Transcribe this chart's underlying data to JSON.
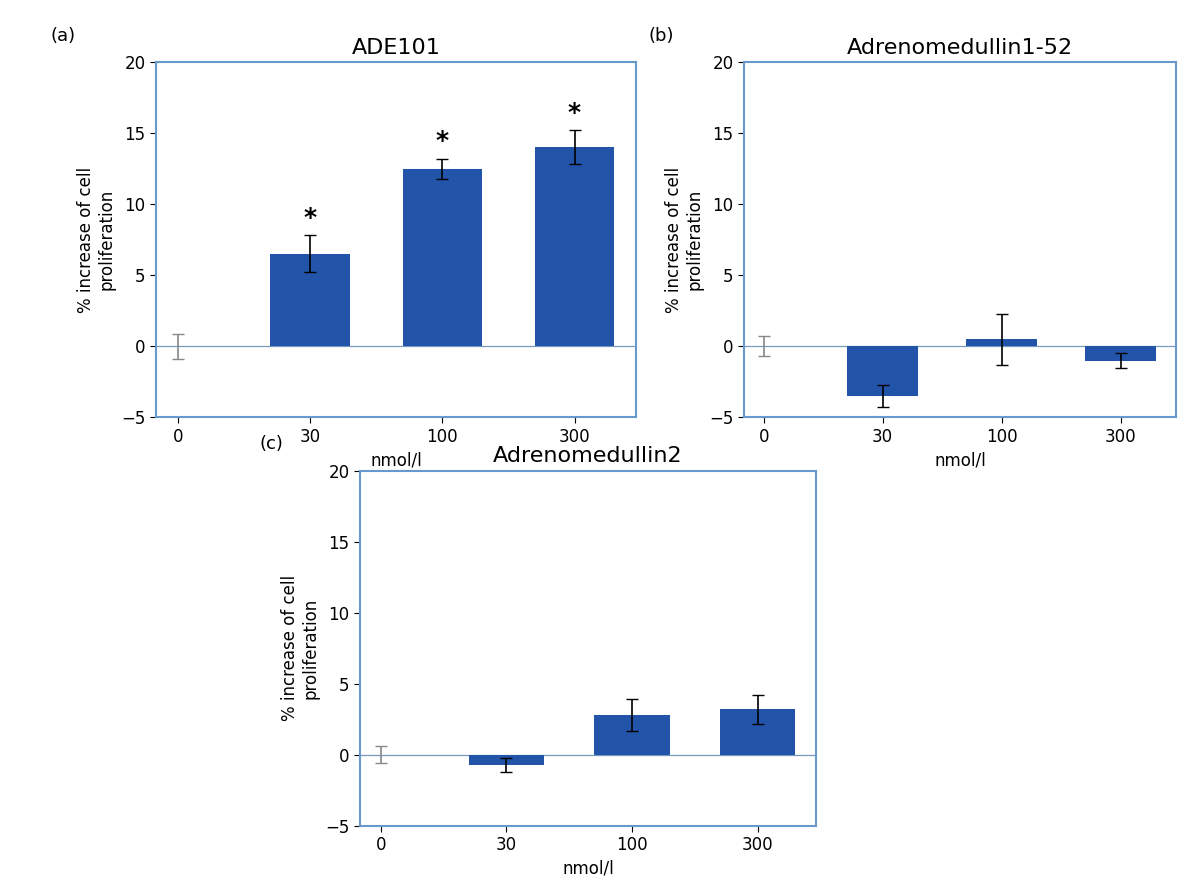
{
  "panels": [
    {
      "label": "(a)",
      "title": "ADE101",
      "categories": [
        "0",
        "30",
        "100",
        "300"
      ],
      "values": [
        0.0,
        6.5,
        12.5,
        14.0
      ],
      "errors": [
        0.9,
        1.3,
        0.7,
        1.2
      ],
      "zero_bar_color": "#bbbbbb",
      "bar_color": "#2255aa",
      "asterisks": [
        false,
        true,
        true,
        true
      ],
      "ylim": [
        -5,
        20
      ],
      "yticks": [
        -5,
        0,
        5,
        10,
        15,
        20
      ],
      "xlabel": "nmol/l",
      "ylabel": "% increase of cell\nproliferation"
    },
    {
      "label": "(b)",
      "title": "Adrenomedullin1-52",
      "categories": [
        "0",
        "30",
        "100",
        "300"
      ],
      "values": [
        0.0,
        -3.5,
        0.5,
        -1.0
      ],
      "errors": [
        0.7,
        0.8,
        1.8,
        0.5
      ],
      "zero_bar_color": "#bbbbbb",
      "bar_color": "#2255aa",
      "asterisks": [
        false,
        false,
        false,
        false
      ],
      "ylim": [
        -5,
        20
      ],
      "yticks": [
        -5,
        0,
        5,
        10,
        15,
        20
      ],
      "xlabel": "nmol/l",
      "ylabel": "% increase of cell\nproliferation"
    },
    {
      "label": "(c)",
      "title": "Adrenomedullin2",
      "categories": [
        "0",
        "30",
        "100",
        "300"
      ],
      "values": [
        0.0,
        -0.7,
        2.8,
        3.2
      ],
      "errors": [
        0.6,
        0.5,
        1.1,
        1.0
      ],
      "zero_bar_color": "#bbbbbb",
      "bar_color": "#2255aa",
      "asterisks": [
        false,
        false,
        false,
        false
      ],
      "ylim": [
        -5,
        20
      ],
      "yticks": [
        -5,
        0,
        5,
        10,
        15,
        20
      ],
      "xlabel": "nmol/l",
      "ylabel": "% increase of cell\nproliferation"
    }
  ],
  "bar_width": 0.6,
  "box_color": "#6699cc",
  "hline_color": "#7799bb",
  "background_color": "#ffffff",
  "tick_label_fontsize": 12,
  "axis_label_fontsize": 12,
  "title_fontsize": 16,
  "panel_label_fontsize": 13
}
